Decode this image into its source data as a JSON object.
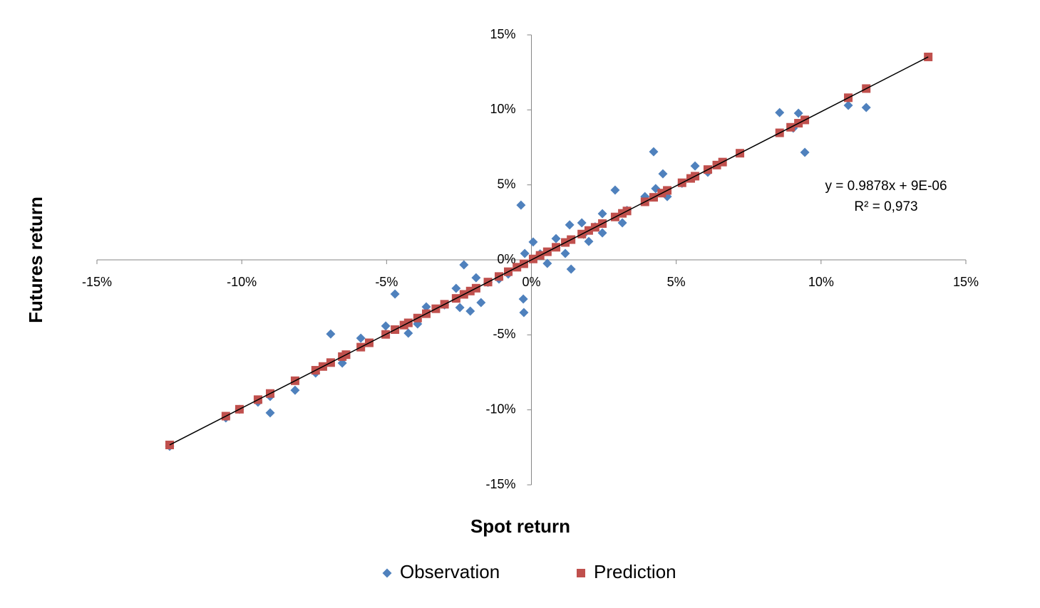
{
  "chart_data": {
    "type": "scatter",
    "xlabel": "Spot return",
    "ylabel": "Futures return",
    "xlim": [
      -15,
      15
    ],
    "ylim": [
      -15,
      15
    ],
    "xticks": [
      {
        "value": -15,
        "label": "-15%"
      },
      {
        "value": -10,
        "label": "-10%"
      },
      {
        "value": -5,
        "label": "-5%"
      },
      {
        "value": 0,
        "label": "0%"
      },
      {
        "value": 5,
        "label": "5%"
      },
      {
        "value": 10,
        "label": "10%"
      },
      {
        "value": 15,
        "label": "15%"
      }
    ],
    "yticks": [
      {
        "value": -15,
        "label": "-15%"
      },
      {
        "value": -10,
        "label": "-10%"
      },
      {
        "value": -5,
        "label": "-5%"
      },
      {
        "value": 0,
        "label": "0%"
      },
      {
        "value": 5,
        "label": "5%"
      },
      {
        "value": 10,
        "label": "10%"
      },
      {
        "value": 15,
        "label": "15%"
      }
    ],
    "series": [
      {
        "name": "Observation",
        "color": "#4f81bd",
        "marker": "diamond",
        "x": [
          -12.49,
          -10.55,
          -10.08,
          -9.44,
          -9.02,
          -9.02,
          -8.16,
          -7.45,
          -6.93,
          -6.53,
          -5.89,
          -5.03,
          -4.71,
          -4.25,
          -3.93,
          -3.63,
          -3.0,
          -2.6,
          -2.47,
          -2.33,
          -2.11,
          -1.91,
          -1.74,
          -1.5,
          -1.12,
          -0.8,
          -0.36,
          -0.28,
          -0.26,
          -0.23,
          0.06,
          0.3,
          0.55,
          0.85,
          1.17,
          1.32,
          1.37,
          1.74,
          1.8,
          1.98,
          2.2,
          2.45,
          2.45,
          2.89,
          3.14,
          3.3,
          3.92,
          4.22,
          4.29,
          4.54,
          4.69,
          5.2,
          5.65,
          6.09,
          8.57,
          9.04,
          9.22,
          9.44,
          10.94,
          11.56
        ],
        "values": [
          -12.43,
          -10.54,
          -9.97,
          -9.49,
          -9.11,
          -10.2,
          -8.69,
          -7.55,
          -4.94,
          -6.88,
          -5.22,
          -4.41,
          -2.28,
          -4.89,
          -4.27,
          -3.13,
          -3.0,
          -1.9,
          -3.18,
          -0.33,
          -3.42,
          -1.19,
          -2.85,
          -1.5,
          -1.28,
          -0.95,
          3.65,
          -2.61,
          -3.51,
          0.43,
          1.19,
          0.4,
          -0.24,
          1.42,
          0.43,
          2.33,
          -0.62,
          2.47,
          1.7,
          1.23,
          2.2,
          3.08,
          1.8,
          4.65,
          2.47,
          3.3,
          4.22,
          7.21,
          4.75,
          5.74,
          4.22,
          5.1,
          6.26,
          5.84,
          9.82,
          8.78,
          9.78,
          7.17,
          10.3,
          10.16
        ]
      },
      {
        "name": "Prediction",
        "color": "#c0504d",
        "marker": "square",
        "x": [
          -12.49,
          -10.55,
          -10.08,
          -9.44,
          -9.02,
          -8.16,
          -7.45,
          -7.2,
          -6.93,
          -6.53,
          -6.4,
          -5.89,
          -5.6,
          -5.03,
          -4.71,
          -4.4,
          -4.25,
          -3.93,
          -3.63,
          -3.3,
          -3.0,
          -2.6,
          -2.33,
          -2.11,
          -1.91,
          -1.5,
          -1.12,
          -0.8,
          -0.5,
          -0.26,
          0.06,
          0.3,
          0.55,
          0.85,
          1.17,
          1.37,
          1.74,
          1.98,
          2.2,
          2.45,
          2.89,
          3.14,
          3.3,
          3.92,
          4.22,
          4.5,
          4.69,
          5.2,
          5.5,
          5.65,
          6.09,
          6.4,
          6.6,
          7.2,
          8.57,
          8.95,
          9.22,
          9.44,
          10.94,
          11.56,
          13.7
        ],
        "values": [
          -12.34,
          -10.42,
          -9.96,
          -9.32,
          -8.91,
          -8.06,
          -7.36,
          -7.11,
          -6.85,
          -6.45,
          -6.32,
          -5.82,
          -5.53,
          -4.97,
          -4.65,
          -4.35,
          -4.2,
          -3.88,
          -3.59,
          -3.26,
          -2.96,
          -2.57,
          -2.3,
          -2.08,
          -1.89,
          -1.48,
          -1.11,
          -0.79,
          -0.49,
          -0.26,
          0.06,
          0.3,
          0.54,
          0.84,
          1.16,
          1.35,
          1.72,
          1.96,
          2.17,
          2.42,
          2.86,
          3.1,
          3.26,
          3.87,
          4.17,
          4.45,
          4.63,
          5.14,
          5.43,
          5.58,
          6.02,
          6.32,
          6.52,
          7.11,
          8.47,
          8.84,
          9.11,
          9.33,
          10.81,
          11.42,
          13.53
        ]
      }
    ],
    "trendline": {
      "color": "#000000",
      "x": [
        -12.49,
        13.7
      ],
      "values": [
        -12.34,
        13.53
      ]
    },
    "annotations": [
      "y = 0.9878x + 9E-06",
      "R² = 0,973"
    ],
    "legend": "bottom"
  }
}
